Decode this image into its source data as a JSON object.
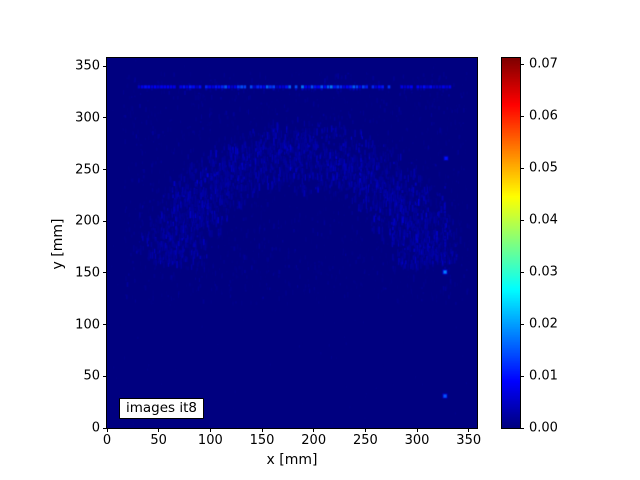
{
  "figure": {
    "background_color": "#ffffff",
    "title": ""
  },
  "chart_data": {
    "type": "heatmap",
    "title": "",
    "xlabel": "x [mm]",
    "ylabel": "y [mm]",
    "xlim": [
      0,
      358
    ],
    "ylim": [
      0,
      358
    ],
    "x_ticks": [
      0,
      50,
      100,
      150,
      200,
      250,
      300,
      350
    ],
    "y_ticks": [
      0,
      50,
      100,
      150,
      200,
      250,
      300,
      350
    ],
    "grid": false,
    "legend": "none",
    "colormap": "jet",
    "base_value": 0.0,
    "base_color": "#000080",
    "annotation": {
      "text": "images it8",
      "x_mm": 12,
      "y_mm": 18
    },
    "colorbar": {
      "position": "right",
      "vmin": 0.0,
      "vmax": 0.0712,
      "ticks": [
        {
          "v": 0.0,
          "label": "0.00"
        },
        {
          "v": 0.01,
          "label": "0.01"
        },
        {
          "v": 0.02,
          "label": "0.02"
        },
        {
          "v": 0.03,
          "label": "0.03"
        },
        {
          "v": 0.04,
          "label": "0.04"
        },
        {
          "v": 0.05,
          "label": "0.05"
        },
        {
          "v": 0.06,
          "label": "0.06"
        },
        {
          "v": 0.07,
          "label": "0.07"
        }
      ]
    },
    "features": {
      "bright_dashed_row": {
        "y_mm": 330,
        "x_start_mm": 31,
        "x_end_mm": 332,
        "dash_step_mm": 3.1,
        "value_range": [
          0.004,
          0.017
        ],
        "brightest_around_x_mm": 185
      },
      "bright_spots": [
        {
          "x_mm": 327,
          "y_mm": 151,
          "value": 0.018
        },
        {
          "x_mm": 327,
          "y_mm": 31,
          "value": 0.015
        },
        {
          "x_mm": 328,
          "y_mm": 261,
          "value": 0.01
        }
      ],
      "vertical_streak": {
        "x_mm": 327,
        "y_from_mm": 150,
        "y_to_mm": 235,
        "value": 0.004
      },
      "noise_arch": {
        "center_x_mm": 185,
        "center_y_mm": 140,
        "radius_mm_mean": 130,
        "radius_mm_spread": 38,
        "value_range": [
          0.001,
          0.007
        ],
        "speckle_count": 2400
      },
      "noise_field": {
        "x_range_mm": [
          15,
          350
        ],
        "y_range_mm": [
          122,
          345
        ],
        "value_range": [
          0.0005,
          0.004
        ],
        "speckle_count": 1700
      },
      "sparse_background_noise": {
        "speckle_count": 260,
        "value_max": 0.002
      }
    },
    "noise_seed": 20177
  }
}
